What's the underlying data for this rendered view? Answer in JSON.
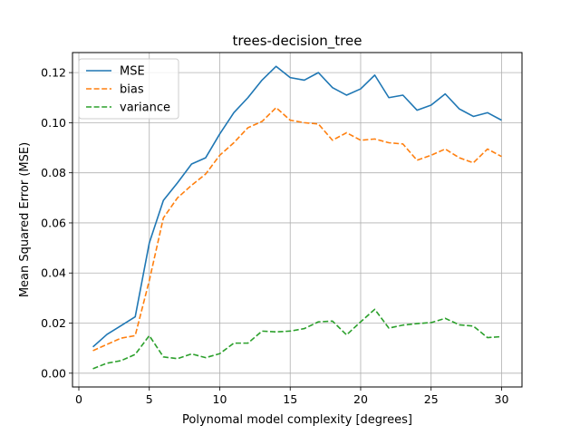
{
  "chart_data": {
    "type": "line",
    "title": "trees-decision_tree",
    "xlabel": "Polynomal model complexity [degrees]",
    "ylabel": "Mean Squared Error (MSE)",
    "xlim": [
      -0.45,
      31.45
    ],
    "ylim": [
      -0.0055,
      0.128
    ],
    "xticks": [
      0,
      5,
      10,
      15,
      20,
      25,
      30
    ],
    "yticks": [
      0.0,
      0.02,
      0.04,
      0.06,
      0.08,
      0.1,
      0.12
    ],
    "ytick_labels": [
      "0.00",
      "0.02",
      "0.04",
      "0.06",
      "0.08",
      "0.10",
      "0.12"
    ],
    "grid": true,
    "legend_position": "upper-left",
    "x": [
      1,
      2,
      3,
      4,
      5,
      6,
      7,
      8,
      9,
      10,
      11,
      12,
      13,
      14,
      15,
      16,
      17,
      18,
      19,
      20,
      21,
      22,
      23,
      24,
      25,
      26,
      27,
      28,
      29,
      30
    ],
    "series": [
      {
        "name": "MSE",
        "color": "#1f77b4",
        "style": "solid",
        "values": [
          0.0105,
          0.0155,
          0.019,
          0.0225,
          0.052,
          0.069,
          0.076,
          0.0835,
          0.086,
          0.0955,
          0.104,
          0.11,
          0.117,
          0.1225,
          0.118,
          0.117,
          0.12,
          0.114,
          0.111,
          0.1135,
          0.119,
          0.11,
          0.111,
          0.105,
          0.107,
          0.1115,
          0.1055,
          0.1025,
          0.104,
          0.101
        ]
      },
      {
        "name": "bias",
        "color": "#ff7f0e",
        "style": "dashed",
        "values": [
          0.009,
          0.0115,
          0.014,
          0.015,
          0.037,
          0.062,
          0.07,
          0.075,
          0.0795,
          0.087,
          0.092,
          0.098,
          0.1005,
          0.106,
          0.101,
          0.1,
          0.0995,
          0.093,
          0.096,
          0.093,
          0.0935,
          0.092,
          0.0915,
          0.085,
          0.087,
          0.0895,
          0.086,
          0.084,
          0.0895,
          0.0865
        ]
      },
      {
        "name": "variance",
        "color": "#2ca02c",
        "style": "dashed",
        "values": [
          0.0018,
          0.004,
          0.005,
          0.0075,
          0.015,
          0.0065,
          0.0058,
          0.0077,
          0.0062,
          0.0078,
          0.012,
          0.012,
          0.0168,
          0.0165,
          0.0168,
          0.0178,
          0.0205,
          0.0208,
          0.0153,
          0.0205,
          0.0255,
          0.018,
          0.0192,
          0.0198,
          0.0202,
          0.0219,
          0.0193,
          0.0188,
          0.0142,
          0.0146
        ]
      }
    ]
  }
}
